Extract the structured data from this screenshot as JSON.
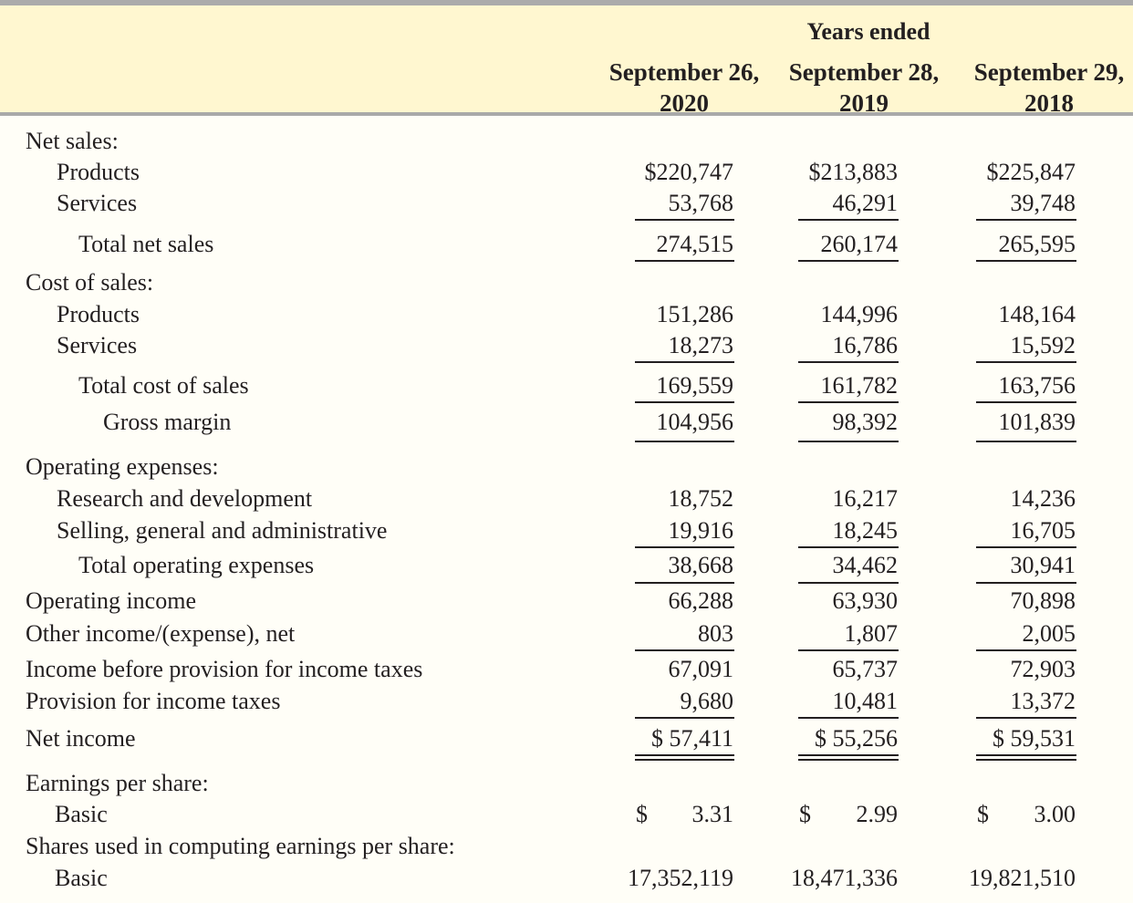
{
  "header": {
    "years_ended": "Years ended",
    "columns": [
      {
        "line1": "September 26,",
        "line2": "2020"
      },
      {
        "line1": "September 28,",
        "line2": "2019"
      },
      {
        "line1": "September 29,",
        "line2": "2018"
      }
    ]
  },
  "rows": {
    "net_sales": {
      "label": "Net sales:"
    },
    "ns_products": {
      "label": "Products",
      "values": [
        "$220,747",
        "$213,883",
        "$225,847"
      ]
    },
    "ns_services": {
      "label": "Services",
      "values": [
        "53,768",
        "46,291",
        "39,748"
      ]
    },
    "total_net_sales": {
      "label": "Total net sales",
      "values": [
        "274,515",
        "260,174",
        "265,595"
      ]
    },
    "cost_of_sales": {
      "label": "Cost of sales:"
    },
    "cs_products": {
      "label": "Products",
      "values": [
        "151,286",
        "144,996",
        "148,164"
      ]
    },
    "cs_services": {
      "label": "Services",
      "values": [
        "18,273",
        "16,786",
        "15,592"
      ]
    },
    "total_cost_of_sales": {
      "label": "Total cost of sales",
      "values": [
        "169,559",
        "161,782",
        "163,756"
      ]
    },
    "gross_margin": {
      "label": "Gross margin",
      "values": [
        "104,956",
        "98,392",
        "101,839"
      ]
    },
    "operating_expenses": {
      "label": "Operating expenses:"
    },
    "rnd": {
      "label": "Research and development",
      "values": [
        "18,752",
        "16,217",
        "14,236"
      ]
    },
    "sga": {
      "label": "Selling, general and administrative",
      "values": [
        "19,916",
        "18,245",
        "16,705"
      ]
    },
    "total_opex": {
      "label": "Total operating expenses",
      "values": [
        "38,668",
        "34,462",
        "30,941"
      ]
    },
    "operating_income": {
      "label": "Operating income",
      "values": [
        "66,288",
        "63,930",
        "70,898"
      ]
    },
    "other_income": {
      "label": "Other income/(expense), net",
      "values": [
        "803",
        "1,807",
        "2,005"
      ]
    },
    "income_before_tax": {
      "label": "Income before provision for income taxes",
      "values": [
        "67,091",
        "65,737",
        "72,903"
      ]
    },
    "provision_tax": {
      "label": "Provision for income taxes",
      "values": [
        "9,680",
        "10,481",
        "13,372"
      ]
    },
    "net_income": {
      "label": "Net income",
      "values": [
        "$ 57,411",
        "$ 55,256",
        "$ 59,531"
      ]
    },
    "eps": {
      "label": "Earnings per share:"
    },
    "eps_basic": {
      "label": "Basic",
      "currency": "$",
      "values": [
        "3.31",
        "2.99",
        "3.00"
      ]
    },
    "shares_used": {
      "label": "Shares used in computing earnings per share:"
    },
    "shares_basic": {
      "label": "Basic",
      "values": [
        "17,352,119",
        "18,471,336",
        "19,821,510"
      ]
    }
  }
}
